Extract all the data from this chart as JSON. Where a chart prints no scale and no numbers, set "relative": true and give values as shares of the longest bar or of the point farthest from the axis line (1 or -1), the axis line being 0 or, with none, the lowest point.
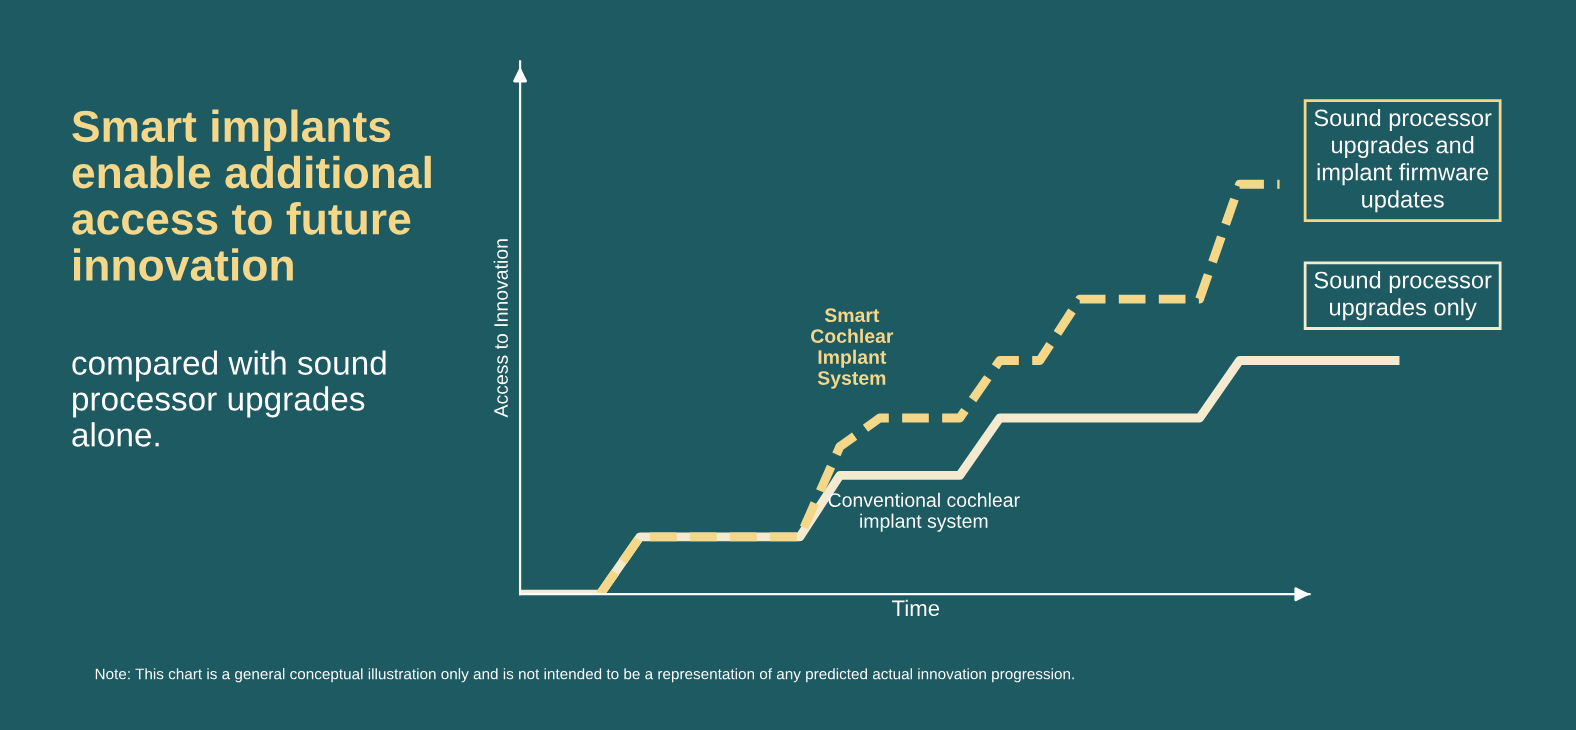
{
  "chart_data": {
    "type": "line",
    "title": "Smart implants enable additional access to future innovation",
    "subtitle": "compared with sound processor upgrades alone.",
    "xlabel": "Time",
    "ylabel": "Access to Innovation",
    "relative": true,
    "categories": [
      null,
      null,
      null,
      null,
      null,
      null,
      null,
      null,
      null,
      null,
      null,
      null,
      null,
      null,
      null,
      null,
      null,
      null,
      null,
      null,
      null,
      null,
      null
    ],
    "series": [
      {
        "name": "Sound processor upgrades only",
        "color": "#f3ead0",
        "line_style": "solid",
        "values": [
          0,
          0,
          0,
          0.14,
          0.14,
          0.14,
          0.14,
          0.14,
          0.29,
          0.29,
          0.29,
          0.29,
          0.43,
          0.43,
          0.43,
          0.43,
          0.43,
          0.43,
          0.57,
          0.57,
          0.57,
          0.57,
          0.57
        ]
      },
      {
        "name": "Sound processor upgrades and implant firmware updates",
        "color": "#f5d78a",
        "line_style": "dashed",
        "values": [
          null,
          null,
          0,
          0.14,
          0.14,
          0.14,
          0.14,
          0.14,
          0.36,
          0.43,
          0.43,
          0.43,
          0.57,
          0.57,
          0.72,
          0.72,
          0.72,
          0.72,
          1,
          1,
          null,
          null,
          null
        ]
      }
    ],
    "annotations": [
      "Smart Cochlear Implant System",
      "Conventional cochlear implant system",
      "Note: This chart is a general conceptual illustration only and is not intended to be a representation of any predicted actual innovation progression."
    ],
    "legend": false,
    "marker": "none"
  }
}
